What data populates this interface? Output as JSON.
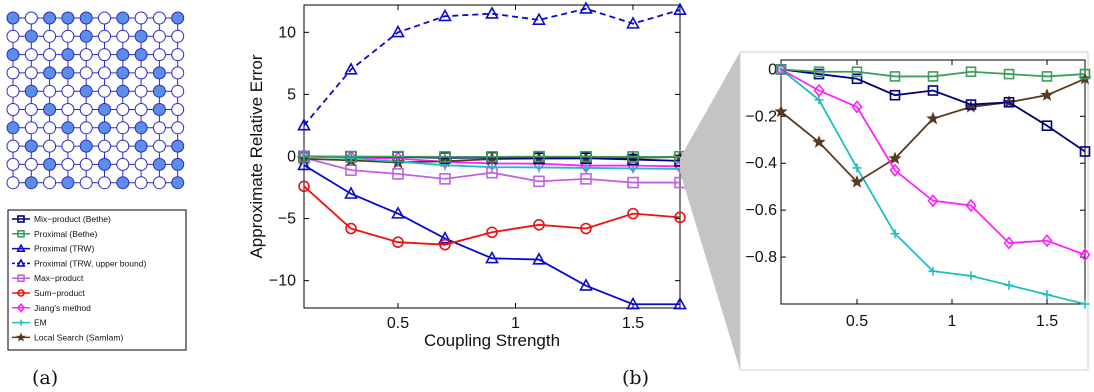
{
  "panel_labels": {
    "a": "(a)",
    "b": "(b)"
  },
  "grid_graph": {
    "rows": 10,
    "cols": 10,
    "node_color": "#5b8ee6",
    "node_color_alt": "#ffffff",
    "edge_color": "#2a2acc"
  },
  "chart_data": [
    {
      "type": "line",
      "xlabel": "Coupling Strength",
      "ylabel": "Approximate Relative Error",
      "xlim": [
        0.1,
        1.7
      ],
      "ylim": [
        -12.2,
        12.2
      ],
      "xticks": [
        "0.5",
        "1",
        "1.5"
      ],
      "yticks": [
        "10",
        "5",
        "0",
        "−5",
        "−10"
      ],
      "x": [
        0.1,
        0.3,
        0.5,
        0.7,
        0.9,
        1.1,
        1.3,
        1.5,
        1.7
      ],
      "series": [
        {
          "name": "Mix−product (Bethe)",
          "color": "#000080",
          "marker": "square",
          "dash": false,
          "values": [
            0,
            -0.02,
            -0.04,
            -0.11,
            -0.09,
            -0.15,
            -0.14,
            -0.24,
            -0.35
          ]
        },
        {
          "name": "Proximal (Bethe)",
          "color": "#3c9e5a",
          "marker": "square",
          "dash": false,
          "values": [
            0,
            -0.01,
            -0.01,
            -0.03,
            -0.03,
            -0.01,
            -0.02,
            -0.03,
            -0.02
          ]
        },
        {
          "name": "Proximal (TRW)",
          "color": "#0a0acc",
          "marker": "triangle",
          "dash": false,
          "values": [
            -0.7,
            -3.0,
            -4.6,
            -6.6,
            -8.2,
            -8.3,
            -10.4,
            -11.9,
            -11.9
          ]
        },
        {
          "name": "Proximal (TRW, upper bound)",
          "color": "#0a0acc",
          "marker": "triangle",
          "dash": true,
          "values": [
            2.5,
            7.0,
            10.0,
            11.3,
            11.5,
            11.0,
            11.9,
            10.7,
            11.8
          ]
        },
        {
          "name": "Max−product",
          "color": "#c062e0",
          "marker": "square",
          "dash": false,
          "values": [
            -0.1,
            -1.1,
            -1.4,
            -1.8,
            -1.3,
            -2.0,
            -1.8,
            -2.1,
            -2.1
          ]
        },
        {
          "name": "Sum−product",
          "color": "#ee1111",
          "marker": "circle",
          "dash": false,
          "values": [
            -2.4,
            -5.8,
            -6.9,
            -7.1,
            -6.1,
            -5.5,
            -5.8,
            -4.6,
            -4.9
          ]
        },
        {
          "name": "Jiang's method",
          "color": "#ff22ff",
          "marker": "diamond",
          "dash": false,
          "values": [
            0,
            -0.09,
            -0.16,
            -0.43,
            -0.56,
            -0.58,
            -0.74,
            -0.73,
            -0.79
          ]
        },
        {
          "name": "EM",
          "color": "#1fbfbf",
          "marker": "plus",
          "dash": false,
          "values": [
            0,
            -0.13,
            -0.42,
            -0.7,
            -0.86,
            -0.88,
            -0.92,
            -0.96,
            -1.0
          ]
        },
        {
          "name": "Local Search (SamIam)",
          "color": "#5a3a1e",
          "marker": "star",
          "dash": false,
          "values": [
            -0.18,
            -0.31,
            -0.48,
            -0.38,
            -0.21,
            -0.16,
            -0.14,
            -0.11,
            -0.04
          ]
        }
      ]
    },
    {
      "type": "line",
      "xlim": [
        0.1,
        1.7
      ],
      "ylim": [
        -1.0,
        0.04
      ],
      "xticks": [
        "0.5",
        "1",
        "1.5"
      ],
      "yticks": [
        "0",
        "−0.2",
        "−0.4",
        "−0.6",
        "−0.8"
      ],
      "x": [
        0.1,
        0.3,
        0.5,
        0.7,
        0.9,
        1.1,
        1.3,
        1.5,
        1.7
      ],
      "series_ref": [
        "Mix−product (Bethe)",
        "Proximal (Bethe)",
        "Jiang's method",
        "EM",
        "Local Search (SamIam)"
      ]
    }
  ]
}
